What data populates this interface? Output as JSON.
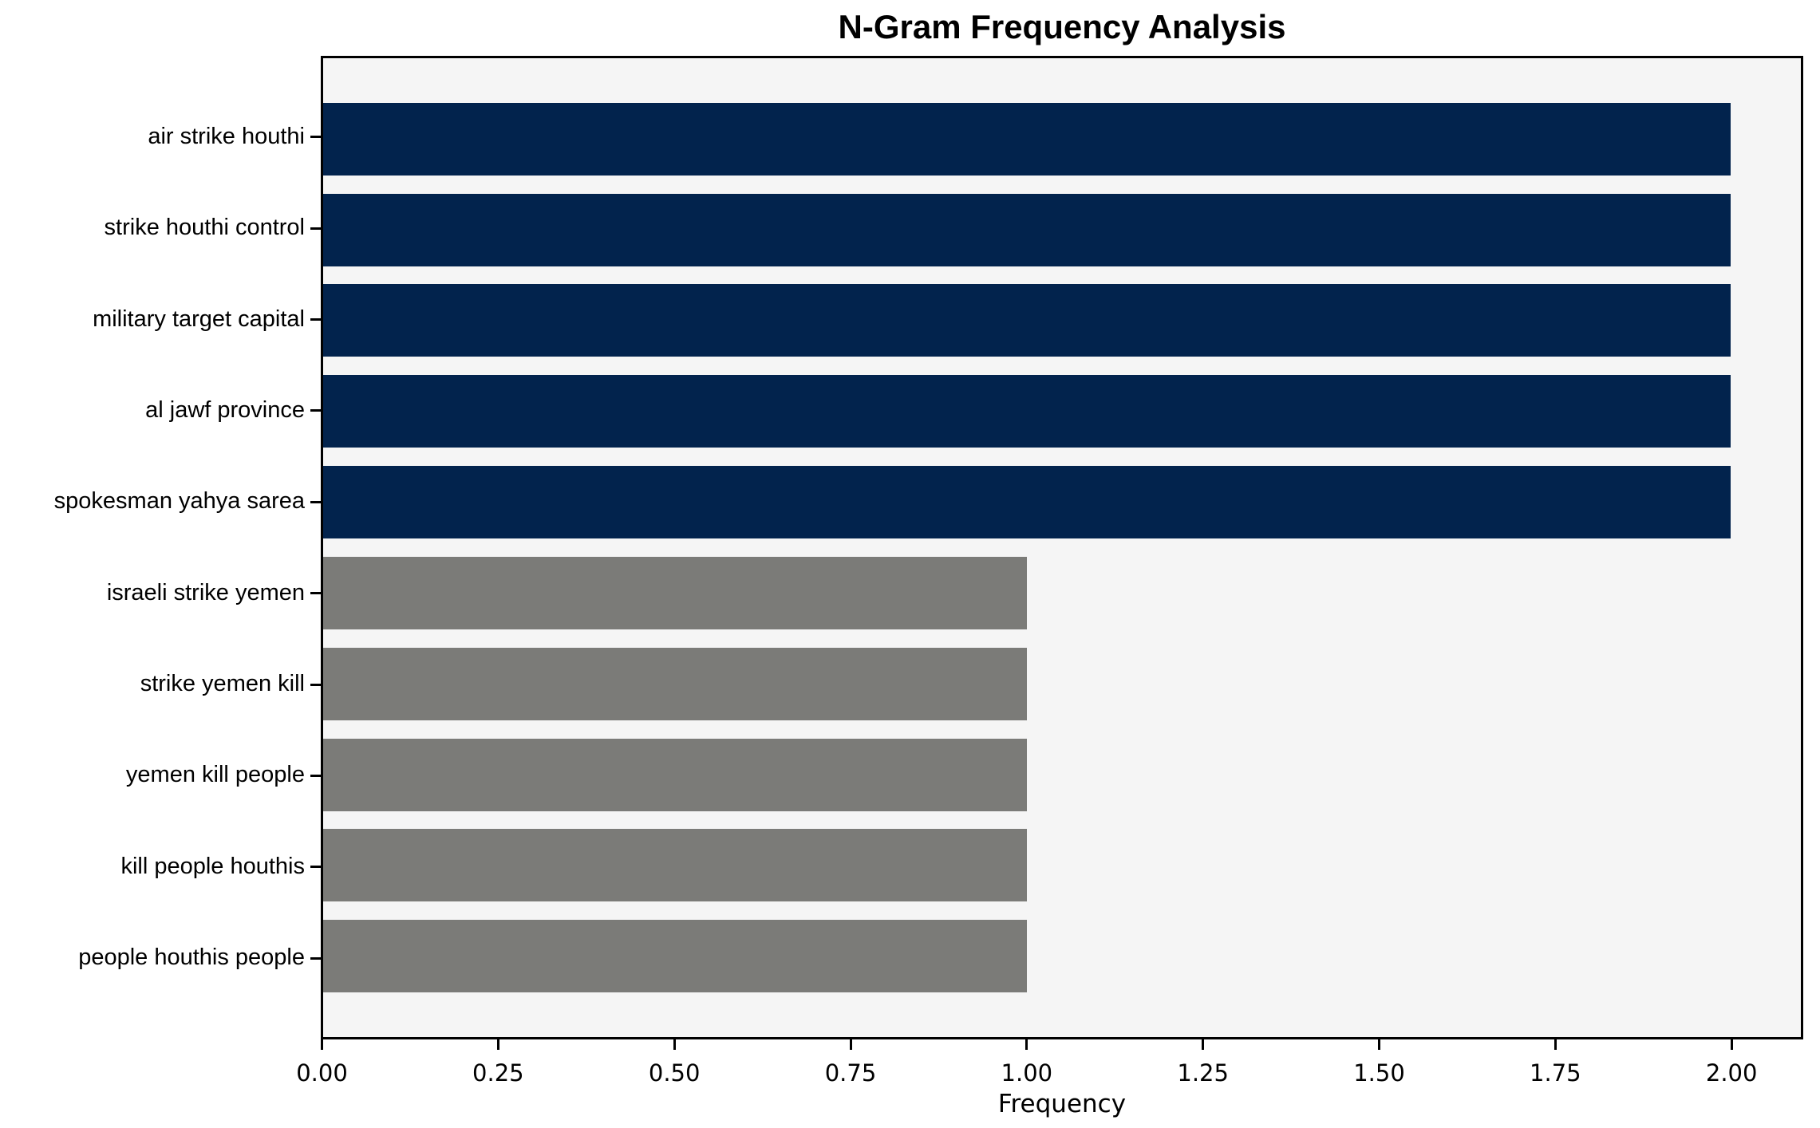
{
  "chart_data": {
    "type": "bar",
    "orientation": "horizontal",
    "title": "N-Gram Frequency Analysis",
    "xlabel": "Frequency",
    "ylabel": "",
    "categories": [
      "air strike houthi",
      "strike houthi control",
      "military target capital",
      "al jawf province",
      "spokesman yahya sarea",
      "israeli strike yemen",
      "strike yemen kill",
      "yemen kill people",
      "kill people houthis",
      "people houthis people"
    ],
    "values": [
      2,
      2,
      2,
      2,
      2,
      1,
      1,
      1,
      1,
      1
    ],
    "bar_colors": [
      "#02234d",
      "#02234d",
      "#02234d",
      "#02234d",
      "#02234d",
      "#7b7b78",
      "#7b7b78",
      "#7b7b78",
      "#7b7b78",
      "#7b7b78"
    ],
    "xlim": [
      0,
      2.1
    ],
    "ylim_units": [
      -0.89,
      9.89
    ],
    "bar_height_units": 0.8,
    "x_tick_values": [
      0.0,
      0.25,
      0.5,
      0.75,
      1.0,
      1.25,
      1.5,
      1.75,
      2.0
    ],
    "x_tick_labels": [
      "0.00",
      "0.25",
      "0.50",
      "0.75",
      "1.00",
      "1.25",
      "1.50",
      "1.75",
      "2.00"
    ],
    "grid": false,
    "legend": null,
    "colors": {
      "navy_bar": "#02234d",
      "gray_bar": "#7b7b78",
      "plot_background": "#f5f5f5",
      "figure_background": "#ffffff",
      "spine": "#000000",
      "text": "#000000"
    }
  }
}
